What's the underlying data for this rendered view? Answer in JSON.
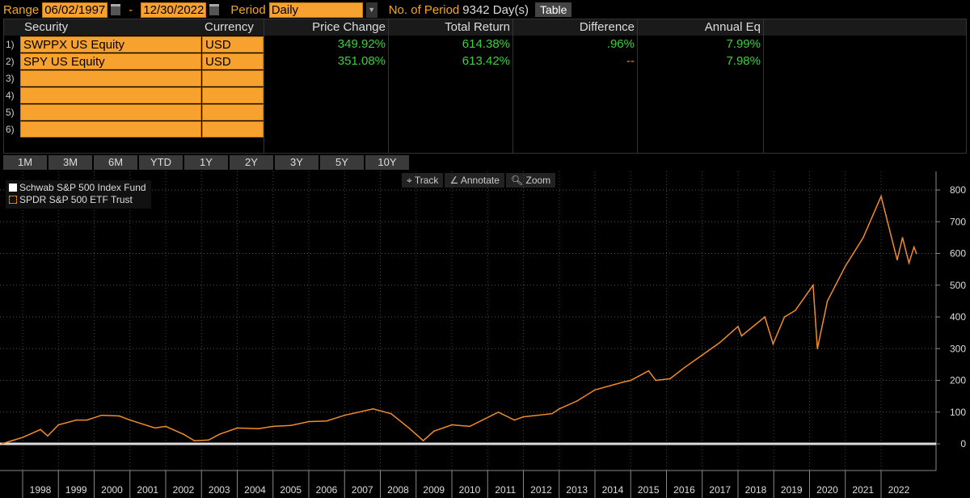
{
  "toolbar": {
    "range_label": "Range",
    "start_date": "06/02/1997",
    "dash": "-",
    "end_date": "12/30/2022",
    "period_label": "Period",
    "period_value": "Daily",
    "num_periods_label": "No. of Period",
    "num_periods_value": "9342 Day(s)",
    "table_button": "Table"
  },
  "table": {
    "headers": [
      "Security",
      "Currency",
      "Price Change",
      "Total Return",
      "Difference",
      "Annual Eq"
    ],
    "rows": [
      {
        "n": "1)",
        "security": "SWPPX US Equity",
        "currency": "USD",
        "price_change": "349.92%",
        "total_return": "614.38%",
        "difference": ".96%",
        "annual_eq": "7.99%"
      },
      {
        "n": "2)",
        "security": "SPY US Equity",
        "currency": "USD",
        "price_change": "351.08%",
        "total_return": "613.42%",
        "difference": "--",
        "annual_eq": "7.98%"
      },
      {
        "n": "3)",
        "security": "",
        "currency": ""
      },
      {
        "n": "4)",
        "security": "",
        "currency": ""
      },
      {
        "n": "5)",
        "security": "",
        "currency": ""
      },
      {
        "n": "6)",
        "security": "",
        "currency": ""
      }
    ]
  },
  "periods": [
    "1M",
    "3M",
    "6M",
    "YTD",
    "1Y",
    "2Y",
    "3Y",
    "5Y",
    "10Y"
  ],
  "tools": {
    "track": "Track",
    "annotate": "Annotate",
    "zoom": "Zoom"
  },
  "legend": [
    {
      "name": "Schwab S&P 500 Index Fund",
      "color": "#ffffff"
    },
    {
      "name": "SPDR S&P 500 ETF Trust",
      "color": "#f28c28"
    }
  ],
  "chart_data": {
    "type": "line",
    "ylim": [
      -50,
      850
    ],
    "yticks": [
      0,
      100,
      200,
      300,
      400,
      500,
      600,
      700,
      800
    ],
    "xticks": [
      "1998",
      "1999",
      "2000",
      "2001",
      "2002",
      "2003",
      "2004",
      "2005",
      "2006",
      "2007",
      "2008",
      "2009",
      "2010",
      "2011",
      "2012",
      "2013",
      "2014",
      "2015",
      "2016",
      "2017",
      "2018",
      "2019",
      "2020",
      "2021",
      "2022"
    ],
    "grid": true,
    "legend_position": "top-left",
    "series": [
      {
        "name": "SPDR S&P 500 ETF Trust",
        "color": "#f28c28",
        "x": [
          1997.42,
          1997.7,
          1998.0,
          1998.5,
          1998.7,
          1999.0,
          1999.5,
          1999.8,
          2000.2,
          2000.7,
          2001.0,
          2001.7,
          2002.0,
          2002.5,
          2002.8,
          2003.2,
          2003.5,
          2004.0,
          2004.6,
          2005.0,
          2005.5,
          2006.0,
          2006.5,
          2007.0,
          2007.8,
          2008.3,
          2008.8,
          2009.2,
          2009.5,
          2010.0,
          2010.5,
          2011.3,
          2011.75,
          2012.0,
          2012.8,
          2013.0,
          2013.5,
          2014.0,
          2014.8,
          2015.0,
          2015.5,
          2015.7,
          2016.1,
          2016.5,
          2017.0,
          2017.5,
          2018.0,
          2018.1,
          2018.75,
          2018.98,
          2019.3,
          2019.6,
          2020.1,
          2020.22,
          2020.5,
          2021.0,
          2021.5,
          2022.0,
          2022.45,
          2022.6,
          2022.78,
          2022.92,
          2022.99
        ],
        "values": [
          0,
          10,
          20,
          45,
          25,
          60,
          75,
          75,
          90,
          88,
          75,
          50,
          55,
          30,
          10,
          12,
          30,
          50,
          48,
          55,
          58,
          70,
          72,
          90,
          110,
          95,
          50,
          10,
          40,
          60,
          55,
          100,
          75,
          85,
          95,
          110,
          135,
          170,
          195,
          200,
          230,
          200,
          205,
          240,
          280,
          320,
          370,
          340,
          400,
          315,
          400,
          420,
          500,
          300,
          450,
          560,
          650,
          780,
          580,
          650,
          570,
          620,
          600
        ]
      }
    ]
  }
}
